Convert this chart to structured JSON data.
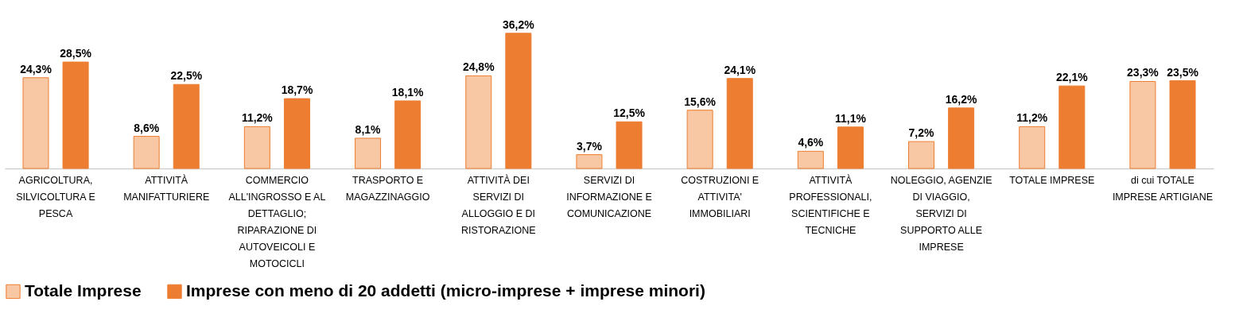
{
  "chart_data": {
    "type": "bar",
    "categories": [
      "AGRICOLTURA, SILVICOLTURA E PESCA",
      "ATTIVITÀ MANIFATTURIERE",
      "COMMERCIO ALL'INGROSSO E AL DETTAGLIO; RIPARAZIONE DI AUTOVEICOLI E MOTOCICLI",
      "TRASPORTO E MAGAZZINAGGIO",
      "ATTIVITÀ DEI SERVIZI DI ALLOGGIO E DI RISTORAZIONE",
      "SERVIZI DI INFORMAZIONE E COMUNICAZIONE",
      "COSTRUZIONI E ATTIVITA' IMMOBILIARI",
      "ATTIVITÀ PROFESSIONALI, SCIENTIFICHE E TECNICHE",
      "NOLEGGIO, AGENZIE DI VIAGGIO, SERVIZI DI SUPPORTO ALLE IMPRESE",
      "TOTALE IMPRESE",
      "di cui TOTALE IMPRESE ARTIGIANE"
    ],
    "series": [
      {
        "name": "Totale Imprese",
        "color": "#f8c7a3",
        "values": [
          24.3,
          8.6,
          11.2,
          8.1,
          24.8,
          3.7,
          15.6,
          4.6,
          7.2,
          11.2,
          23.3
        ],
        "value_labels": [
          "24,3%",
          "8,6%",
          "11,2%",
          "8,1%",
          "24,8%",
          "3,7%",
          "15,6%",
          "4,6%",
          "7,2%",
          "11,2%",
          "23,3%"
        ]
      },
      {
        "name": "Imprese con meno di 20 addetti (micro-imprese + imprese minori)",
        "color": "#ed7d31",
        "values": [
          28.5,
          22.5,
          18.7,
          18.1,
          36.2,
          12.5,
          24.1,
          11.1,
          16.2,
          22.1,
          23.5
        ],
        "value_labels": [
          "28,5%",
          "22,5%",
          "18,7%",
          "18,1%",
          "36,2%",
          "12,5%",
          "24,1%",
          "11,1%",
          "16,2%",
          "22,1%",
          "23,5%"
        ]
      }
    ],
    "legend": "bottom",
    "grid": false
  }
}
